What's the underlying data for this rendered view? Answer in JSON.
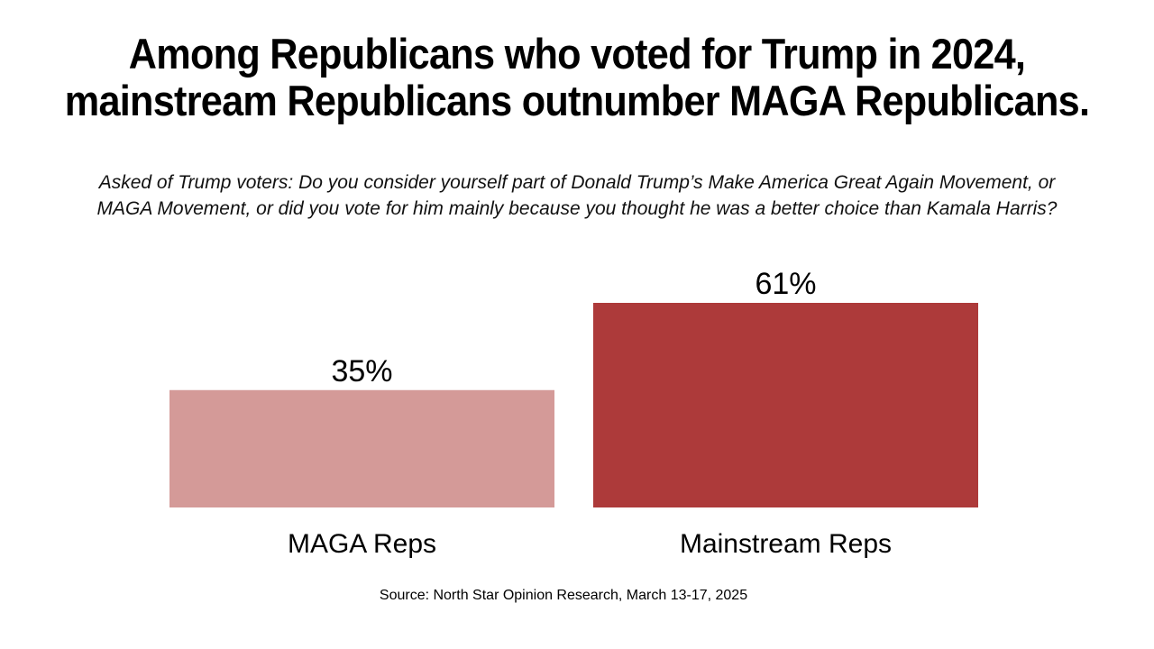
{
  "chart_data": {
    "type": "bar",
    "title_lines": [
      "Among Republicans who voted for Trump in 2024,",
      "mainstream Republicans outnumber MAGA Republicans."
    ],
    "subtitle_lines": [
      "Asked of Trump voters:  Do you consider yourself part of Donald Trump’s Make America Great Again Movement, or",
      "MAGA Movement, or did you vote for him mainly because you thought he was a better choice than Kamala Harris?"
    ],
    "categories": [
      "MAGA Reps",
      "Mainstream Reps"
    ],
    "values": [
      35,
      61
    ],
    "value_labels": [
      "35%",
      "61%"
    ],
    "colors": [
      "#d49a98",
      "#ad3a3a"
    ],
    "ylim": [
      0,
      100
    ],
    "xlabel": "",
    "ylabel": "",
    "grid": false,
    "source": "Source: North Star Opinion Research, March 13-17, 2025"
  }
}
